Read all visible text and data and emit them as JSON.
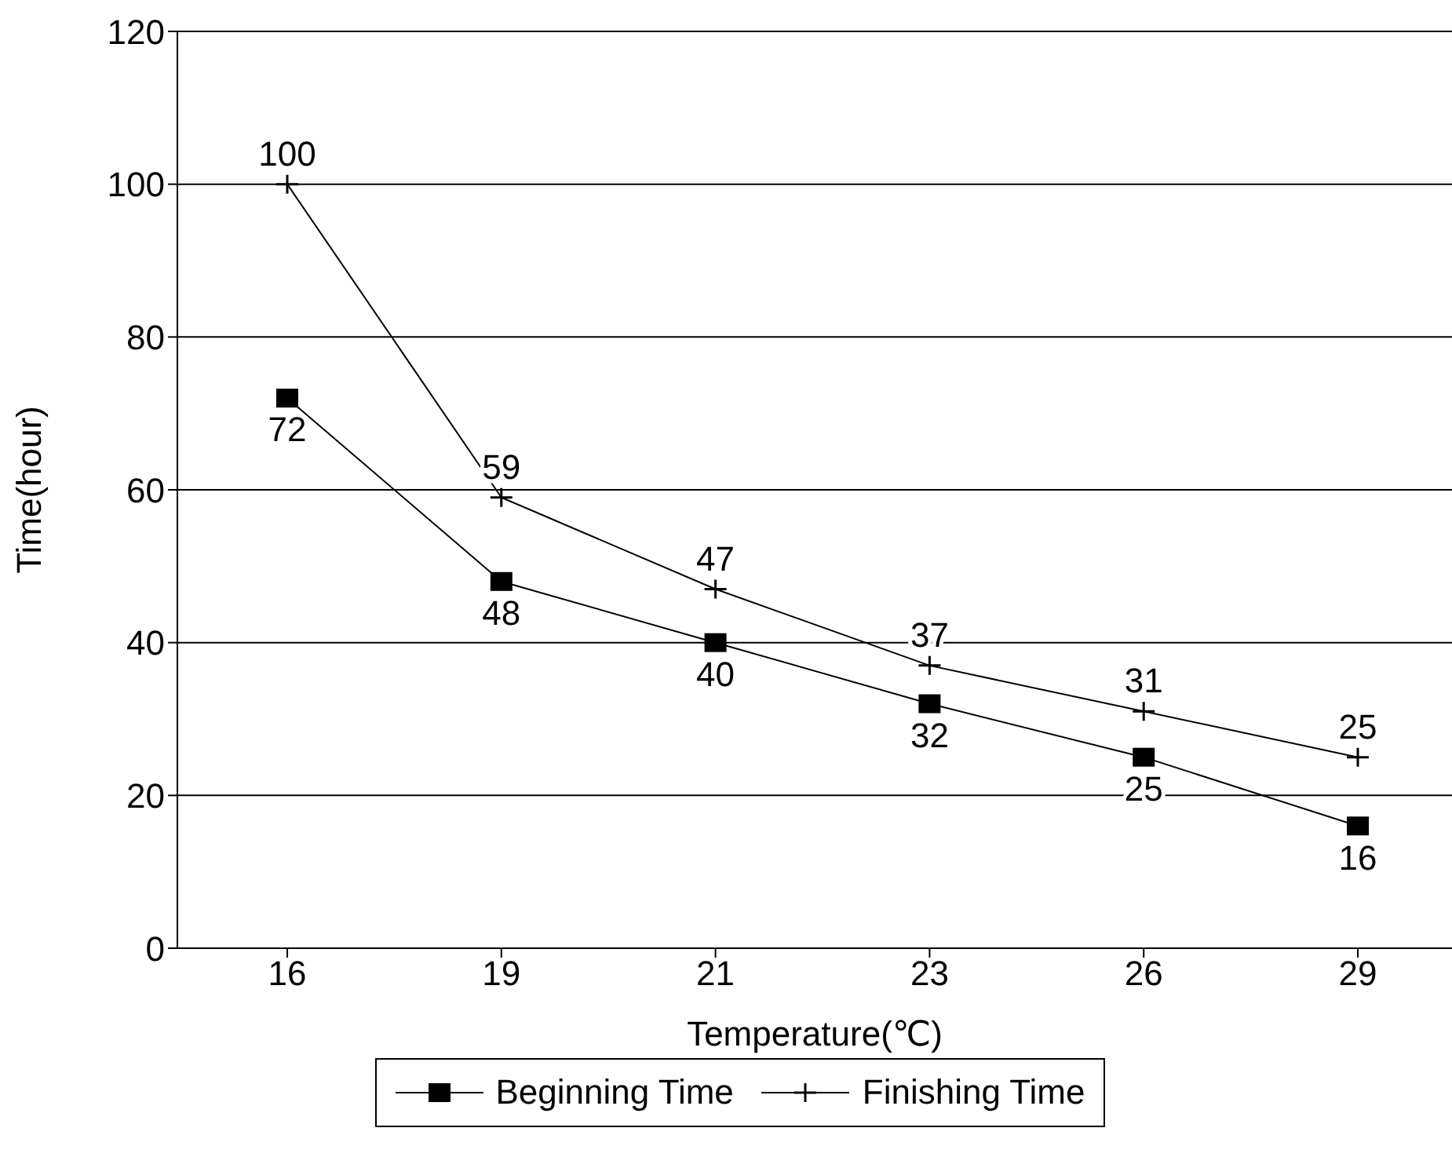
{
  "chart_data": {
    "type": "line",
    "xlabel": "Temperature(℃)",
    "ylabel": "Time(hour)",
    "categories": [
      "16",
      "19",
      "21",
      "23",
      "26",
      "29"
    ],
    "series": [
      {
        "name": "Beginning Time",
        "color": "#000000",
        "marker": "square",
        "values": [
          72,
          48,
          40,
          32,
          25,
          16
        ]
      },
      {
        "name": "Finishing Time",
        "color": "#000000",
        "marker": "cross",
        "values": [
          100,
          59,
          47,
          37,
          31,
          25
        ]
      }
    ],
    "ylim": [
      0,
      120
    ],
    "yticks": [
      0,
      20,
      40,
      60,
      80,
      100,
      120
    ],
    "grid": "y",
    "legend": "bottom",
    "data_labels": true,
    "line_style": "solid"
  }
}
